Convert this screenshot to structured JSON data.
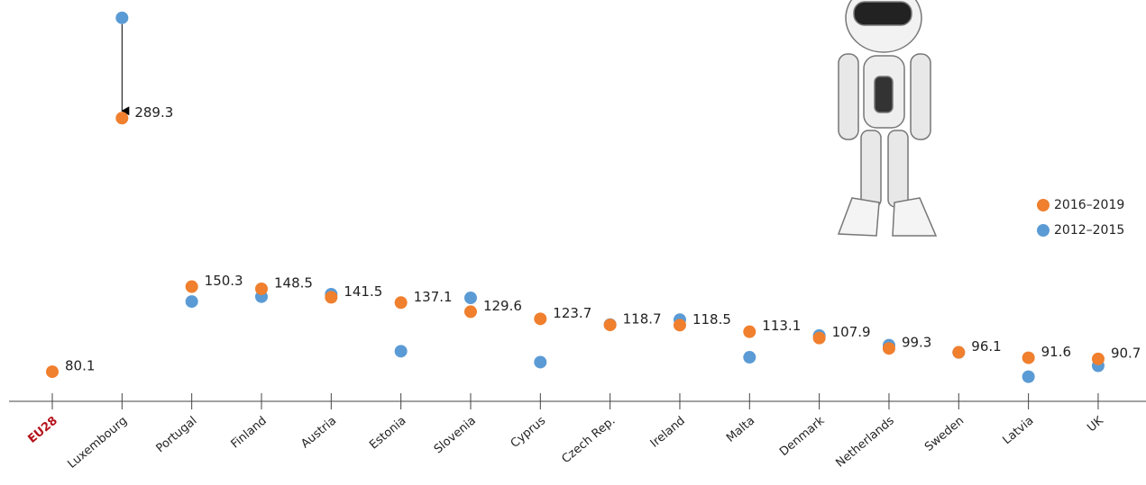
{
  "chart_data": {
    "type": "dot",
    "categories": [
      "EU28",
      "Luxembourg",
      "Portugal",
      "Finland",
      "Austria",
      "Estonia",
      "Slovenia",
      "Cyprus",
      "Czech Rep.",
      "Ireland",
      "Malta",
      "Denmark",
      "Netherlands",
      "Sweden",
      "Latvia",
      "UK"
    ],
    "highlight_category_color": "#b5121b",
    "series": [
      {
        "name": "2012–2015",
        "color": "#5b9bd5",
        "values": [
          null,
          372,
          138,
          142,
          144,
          97,
          141,
          88,
          119,
          123,
          92,
          110,
          102,
          96,
          76,
          85
        ]
      },
      {
        "name": "2016–2019",
        "color": "#f07f2e",
        "values": [
          80.1,
          289.3,
          150.3,
          148.5,
          141.5,
          137.1,
          129.6,
          123.7,
          118.7,
          118.5,
          113.1,
          107.9,
          99.3,
          96.1,
          91.6,
          90.7
        ]
      }
    ],
    "ylim": [
      0,
      386
    ]
  }
}
